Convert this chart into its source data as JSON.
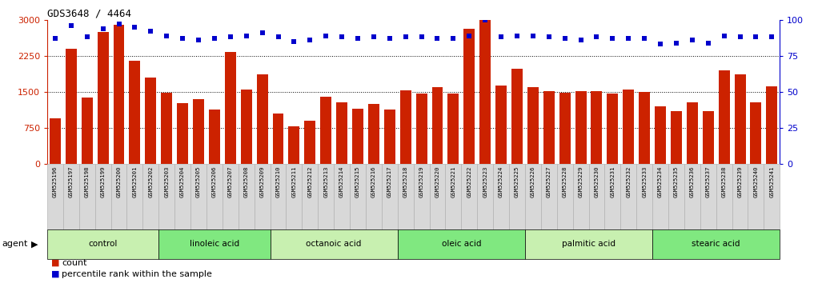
{
  "title": "GDS3648 / 4464",
  "samples": [
    "GSM525196",
    "GSM525197",
    "GSM525198",
    "GSM525199",
    "GSM525200",
    "GSM525201",
    "GSM525202",
    "GSM525203",
    "GSM525204",
    "GSM525205",
    "GSM525206",
    "GSM525207",
    "GSM525208",
    "GSM525209",
    "GSM525210",
    "GSM525211",
    "GSM525212",
    "GSM525213",
    "GSM525214",
    "GSM525215",
    "GSM525216",
    "GSM525217",
    "GSM525218",
    "GSM525219",
    "GSM525220",
    "GSM525221",
    "GSM525222",
    "GSM525223",
    "GSM525224",
    "GSM525225",
    "GSM525226",
    "GSM525227",
    "GSM525228",
    "GSM525229",
    "GSM525230",
    "GSM525231",
    "GSM525232",
    "GSM525233",
    "GSM525234",
    "GSM525235",
    "GSM525236",
    "GSM525237",
    "GSM525238",
    "GSM525239",
    "GSM525240",
    "GSM525241"
  ],
  "counts": [
    950,
    2400,
    1380,
    2750,
    2900,
    2150,
    1800,
    1480,
    1270,
    1350,
    1140,
    2330,
    1550,
    1870,
    1050,
    780,
    900,
    1400,
    1280,
    1150,
    1250,
    1130,
    1530,
    1470,
    1600,
    1470,
    2820,
    3020,
    1640,
    1990,
    1600,
    1520,
    1490,
    1520,
    1510,
    1470,
    1550,
    1500,
    1200,
    1100,
    1290,
    1100,
    1950,
    1870,
    1290,
    1610
  ],
  "percentile_ranks": [
    87,
    96,
    88,
    94,
    97,
    95,
    92,
    89,
    87,
    86,
    87,
    88,
    89,
    91,
    88,
    85,
    86,
    89,
    88,
    87,
    88,
    87,
    88,
    88,
    87,
    87,
    89,
    100,
    88,
    89,
    89,
    88,
    87,
    86,
    88,
    87,
    87,
    87,
    83,
    84,
    86,
    84,
    89,
    88,
    88,
    88
  ],
  "groups": [
    {
      "label": "control",
      "start": 0,
      "end": 6,
      "color": "#c8f0b0"
    },
    {
      "label": "linoleic acid",
      "start": 7,
      "end": 13,
      "color": "#80e880"
    },
    {
      "label": "octanoic acid",
      "start": 14,
      "end": 21,
      "color": "#c8f0b0"
    },
    {
      "label": "oleic acid",
      "start": 22,
      "end": 29,
      "color": "#80e880"
    },
    {
      "label": "palmitic acid",
      "start": 30,
      "end": 37,
      "color": "#c8f0b0"
    },
    {
      "label": "stearic acid",
      "start": 38,
      "end": 45,
      "color": "#80e880"
    }
  ],
  "bar_color": "#cc2200",
  "dot_color": "#0000cc",
  "ylim_left": [
    0,
    3000
  ],
  "ylim_right": [
    0,
    100
  ],
  "yticks_left": [
    0,
    750,
    1500,
    2250,
    3000
  ],
  "yticks_right": [
    0,
    25,
    50,
    75,
    100
  ],
  "agent_label": "agent",
  "legend_count": "count",
  "legend_pct": "percentile rank within the sample"
}
